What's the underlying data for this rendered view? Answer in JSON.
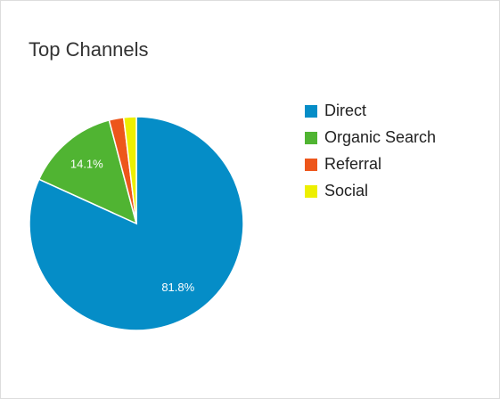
{
  "chart_data": {
    "type": "pie",
    "title": "Top Channels",
    "categories": [
      "Direct",
      "Organic Search",
      "Referral",
      "Social"
    ],
    "values": [
      81.8,
      14.1,
      2.2,
      1.9
    ],
    "value_labels": [
      "81.8%",
      "14.1%",
      null,
      null
    ],
    "colors": [
      "#058dc7",
      "#50b432",
      "#ed561b",
      "#edef00"
    ],
    "legend": "right"
  }
}
